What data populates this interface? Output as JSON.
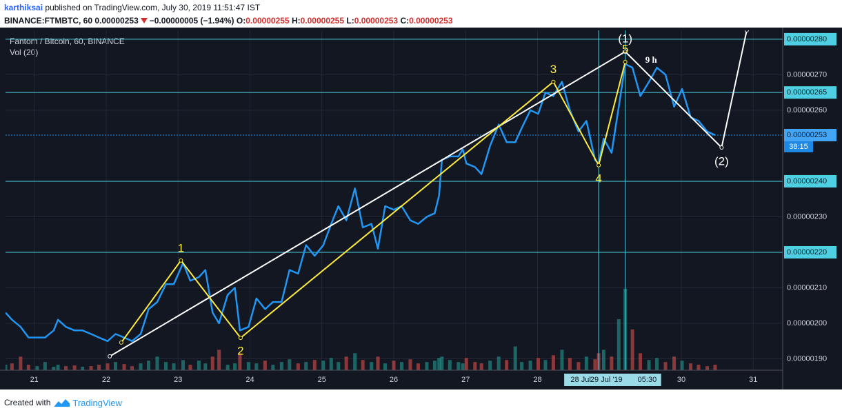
{
  "header": {
    "publisher": "karthiksai",
    "published": "published on TradingView.com, July 30, 2019 11:51:47 IST",
    "symbol": "BINANCE:FTMBTC, 60",
    "last": "0.00000253",
    "change": "−0.00000005 (−1.94%)",
    "ohlc": [
      {
        "key": "O:",
        "value": "0.00000255"
      },
      {
        "key": "H:",
        "value": "0.00000255"
      },
      {
        "key": "L:",
        "value": "0.00000253"
      },
      {
        "key": "C:",
        "value": "0.00000253"
      }
    ]
  },
  "footer": {
    "created": "Created with",
    "brand": "TradingView"
  },
  "chart_data": {
    "type": "line",
    "title": "Fantom / Bitcoin, 60, BINANCE",
    "subtitle": "Vol (20)",
    "color": "#2196f3",
    "grid": true,
    "x": [
      20.6,
      20.69,
      20.81,
      20.92,
      21.04,
      21.15,
      21.27,
      21.33,
      21.44,
      21.56,
      21.67,
      21.79,
      21.9,
      22.02,
      22.13,
      22.25,
      22.36,
      22.48,
      22.59,
      22.71,
      22.83,
      22.94,
      23.07,
      23.17,
      23.29,
      23.38,
      23.48,
      23.57,
      23.69,
      23.79,
      23.86,
      23.98,
      24.09,
      24.21,
      24.32,
      24.44,
      24.55,
      24.67,
      24.78,
      24.9,
      25.02,
      25.13,
      25.23,
      25.34,
      25.46,
      25.57,
      25.69,
      25.78,
      25.88,
      26.0,
      26.11,
      26.23,
      26.34,
      26.46,
      26.57,
      26.63,
      26.67,
      26.78,
      26.9,
      26.96,
      27.01,
      27.13,
      27.22,
      27.34,
      27.46,
      27.57,
      27.69,
      27.78,
      27.9,
      28.01,
      28.11,
      28.22,
      28.34,
      28.45,
      28.57,
      28.68,
      28.8,
      28.85,
      28.92,
      29.03,
      29.13,
      29.22,
      29.32,
      29.43,
      29.55,
      29.66,
      29.78,
      29.9,
      30.01,
      30.13,
      30.24,
      30.36,
      30.47
    ],
    "values": [
      2.03e-06,
      2.01e-06,
      1.99e-06,
      1.96e-06,
      1.96e-06,
      1.96e-06,
      1.98e-06,
      2.01e-06,
      1.99e-06,
      1.98e-06,
      1.98e-06,
      1.97e-06,
      1.96e-06,
      1.95e-06,
      1.97e-06,
      1.96e-06,
      1.95e-06,
      1.97e-06,
      2.04e-06,
      2.06e-06,
      2.11e-06,
      2.11e-06,
      2.17e-06,
      2.12e-06,
      2.13e-06,
      2.15e-06,
      2.03e-06,
      2e-06,
      2.08e-06,
      2.1e-06,
      1.98e-06,
      1.99e-06,
      2.07e-06,
      2.04e-06,
      2.06e-06,
      2.06e-06,
      2.15e-06,
      2.14e-06,
      2.22e-06,
      2.19e-06,
      2.22e-06,
      2.28e-06,
      2.33e-06,
      2.29e-06,
      2.38e-06,
      2.27e-06,
      2.28e-06,
      2.21e-06,
      2.33e-06,
      2.32e-06,
      2.33e-06,
      2.29e-06,
      2.28e-06,
      2.3e-06,
      2.31e-06,
      2.36e-06,
      2.46e-06,
      2.47e-06,
      2.47e-06,
      2.49e-06,
      2.45e-06,
      2.44e-06,
      2.42e-06,
      2.5e-06,
      2.56e-06,
      2.51e-06,
      2.51e-06,
      2.55e-06,
      2.6e-06,
      2.59e-06,
      2.65e-06,
      2.64e-06,
      2.68e-06,
      2.6e-06,
      2.54e-06,
      2.57e-06,
      2.46e-06,
      2.45e-06,
      2.52e-06,
      2.48e-06,
      2.61e-06,
      2.73e-06,
      2.72e-06,
      2.64e-06,
      2.68e-06,
      2.72e-06,
      2.7e-06,
      2.61e-06,
      2.66e-06,
      2.58e-06,
      2.57e-06,
      2.54e-06,
      2.53e-06
    ],
    "volume": {
      "values": [
        8,
        10,
        20,
        8,
        6,
        12,
        5,
        8,
        6,
        7,
        5,
        6,
        8,
        10,
        12,
        9,
        6,
        10,
        14,
        20,
        12,
        10,
        15,
        8,
        14,
        10,
        20,
        30,
        8,
        10,
        25,
        12,
        10,
        14,
        8,
        12,
        16,
        10,
        12,
        15,
        14,
        18,
        12,
        20,
        25,
        15,
        12,
        20,
        10,
        14,
        12,
        16,
        10,
        12,
        14,
        18,
        20,
        15,
        12,
        10,
        18,
        12,
        10,
        14,
        20,
        15,
        35,
        12,
        14,
        18,
        15,
        22,
        30,
        18,
        12,
        20,
        16,
        25,
        30,
        20,
        75,
        120,
        60,
        25,
        15,
        18,
        12,
        20,
        14,
        10,
        8,
        6,
        8
      ],
      "up_color": "#26a69a",
      "down_color": "#ef5350"
    },
    "y2lim": [
      0,
      500
    ],
    "xlim": [
      20.6,
      31.41
    ],
    "xticks": [
      21,
      22,
      23,
      24,
      25,
      26,
      27,
      28,
      30,
      31
    ],
    "ylim": [
      1.868e-06,
      2.825e-06
    ],
    "yticks": [
      {
        "value": 1.9e-06,
        "label": "0.00000190"
      },
      {
        "value": 2e-06,
        "label": "0.00000200"
      },
      {
        "value": 2.1e-06,
        "label": "0.00000210"
      },
      {
        "value": 2.3e-06,
        "label": "0.00000230"
      },
      {
        "value": 2.6e-06,
        "label": "0.00000260"
      },
      {
        "value": 2.7e-06,
        "label": "0.00000270"
      }
    ],
    "hlines": {
      "color": "#4dd0e1",
      "lines": [
        {
          "value": 2.8e-06,
          "label": "0.00000280"
        },
        {
          "value": 2.65e-06,
          "label": "0.00000265"
        },
        {
          "value": 2.4e-06,
          "label": "0.00000240"
        },
        {
          "value": 2.2e-06,
          "label": "0.00000220"
        }
      ]
    },
    "last_price": {
      "value": 2.53e-06,
      "label": "0.00000253",
      "countdown": "38:15"
    },
    "crosshair": {
      "x": [
        28.85,
        29.22
      ],
      "labels": [
        "28 Jul",
        "29 Jul '19",
        "05:30"
      ]
    },
    "waves": {
      "color": "#ffeb3b",
      "x": [
        22.21,
        23.04,
        23.87,
        28.22,
        28.85,
        29.22
      ],
      "y": [
        1.946e-06,
        2.177e-06,
        1.959e-06,
        2.68e-06,
        2.445e-06,
        2.736e-06
      ]
    },
    "trend": {
      "color": "#ffffff",
      "x": [
        22.05,
        29.22,
        30.56,
        30.91
      ],
      "y": [
        1.907e-06,
        2.765e-06,
        2.495e-06,
        2.825e-06
      ]
    },
    "annotations": [
      {
        "text": "1",
        "x": 23.04,
        "y": 2.21e-06,
        "color": "#ffeb3b"
      },
      {
        "text": "2",
        "x": 23.87,
        "y": 1.92e-06,
        "color": "#ffeb3b"
      },
      {
        "text": "3",
        "x": 28.22,
        "y": 2.713e-06,
        "color": "#ffeb3b"
      },
      {
        "text": "4",
        "x": 28.85,
        "y": 2.406e-06,
        "color": "#ffeb3b"
      },
      {
        "text": "5",
        "x": 29.22,
        "y": 2.771e-06,
        "color": "#ffeb3b"
      },
      {
        "text": "(1)",
        "x": 29.22,
        "y": 2.8e-06,
        "color": "#ffffff"
      },
      {
        "text": "(2)",
        "x": 30.56,
        "y": 2.454e-06,
        "color": "#ffffff"
      },
      {
        "text": "9 h",
        "x": 29.58,
        "y": 2.74e-06,
        "color": "#ffffff"
      }
    ]
  }
}
